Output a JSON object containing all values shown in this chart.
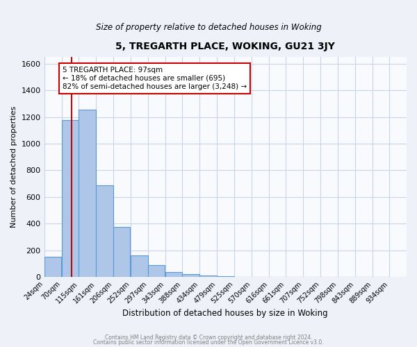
{
  "title": "5, TREGARTH PLACE, WOKING, GU21 3JY",
  "subtitle": "Size of property relative to detached houses in Woking",
  "xlabel": "Distribution of detached houses by size in Woking",
  "ylabel": "Number of detached properties",
  "bin_labels": [
    "24sqm",
    "70sqm",
    "115sqm",
    "161sqm",
    "206sqm",
    "252sqm",
    "297sqm",
    "343sqm",
    "388sqm",
    "434sqm",
    "479sqm",
    "525sqm",
    "570sqm",
    "616sqm",
    "661sqm",
    "707sqm",
    "752sqm",
    "798sqm",
    "843sqm",
    "889sqm",
    "934sqm"
  ],
  "bin_edges": [
    24,
    70,
    115,
    161,
    206,
    252,
    297,
    343,
    388,
    434,
    479,
    525,
    570,
    616,
    661,
    707,
    752,
    798,
    843,
    889,
    934
  ],
  "bar_heights": [
    150,
    1175,
    1255,
    690,
    375,
    160,
    90,
    35,
    20,
    10,
    5,
    0,
    0,
    0,
    0,
    0,
    0,
    0,
    0,
    0
  ],
  "bar_color": "#aec6e8",
  "bar_edge_color": "#5b9bd5",
  "red_line_x": 97,
  "ylim": [
    0,
    1650
  ],
  "annotation_text": "5 TREGARTH PLACE: 97sqm\n← 18% of detached houses are smaller (695)\n82% of semi-detached houses are larger (3,248) →",
  "annotation_box_color": "#ffffff",
  "annotation_box_edge": "#cc0000",
  "red_line_color": "#cc0000",
  "footer_line1": "Contains HM Land Registry data © Crown copyright and database right 2024.",
  "footer_line2": "Contains public sector information licensed under the Open Government Licence v3.0.",
  "bg_color": "#eef2f8",
  "plot_bg_color": "#f8fafd",
  "grid_color": "#c8d4e8",
  "yticks": [
    0,
    200,
    400,
    600,
    800,
    1000,
    1200,
    1400,
    1600
  ]
}
